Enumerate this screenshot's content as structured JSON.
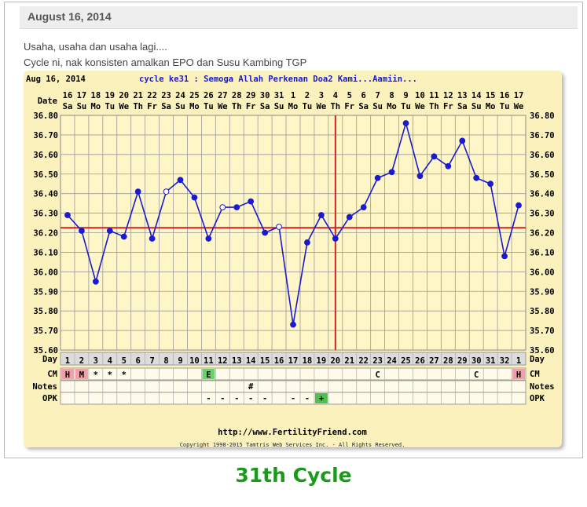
{
  "post": {
    "date": "August 16, 2014",
    "line1": "Usaha, usaha dan usaha lagi....",
    "line2": "Cycle ni, nak konsisten amalkan EPO dan Susu Kambing TGP"
  },
  "chart_header": {
    "start_date": "Aug 16, 2014",
    "title": "cycle ke31 : Semoga Allah Perkenan Doa2 Kami...Aamiin..."
  },
  "row_labels": {
    "date": "Date",
    "day": "Day",
    "cm": "CM",
    "notes": "Notes",
    "opk": "OPK"
  },
  "footer": {
    "url": "http://www.FertilityFriend.com",
    "copyright": "Copyright 1998-2015 Tamtris Web Services Inc. - All Rights Reserved."
  },
  "caption": "31th Cycle",
  "colors": {
    "line": "#1a1ad0",
    "coverline": "#d42020",
    "plot_bg": "#fff6c8",
    "caption": "#1a9a1a"
  },
  "chart_data": {
    "type": "line",
    "ylim": [
      35.6,
      36.8
    ],
    "y_ticks": [
      "36.80",
      "36.70",
      "36.60",
      "36.50",
      "36.40",
      "36.30",
      "36.20",
      "36.10",
      "36.00",
      "35.90",
      "35.80",
      "35.70",
      "35.60"
    ],
    "dates": [
      "16",
      "17",
      "18",
      "19",
      "20",
      "21",
      "22",
      "23",
      "24",
      "25",
      "26",
      "27",
      "28",
      "29",
      "30",
      "31",
      "1",
      "2",
      "3",
      "4",
      "5",
      "6",
      "7",
      "8",
      "9",
      "10",
      "11",
      "12",
      "13",
      "14",
      "15",
      "16",
      "17"
    ],
    "weekdays": [
      "Sa",
      "Su",
      "Mo",
      "Tu",
      "We",
      "Th",
      "Fr",
      "Sa",
      "Su",
      "Mo",
      "Tu",
      "We",
      "Th",
      "Fr",
      "Sa",
      "Su",
      "Mo",
      "Tu",
      "We",
      "Th",
      "Fr",
      "Sa",
      "Su",
      "Mo",
      "Tu",
      "We",
      "Th",
      "Fr",
      "Sa",
      "Su",
      "Mo",
      "Tu",
      "We"
    ],
    "cycle_days": [
      "1",
      "2",
      "3",
      "4",
      "5",
      "6",
      "7",
      "8",
      "9",
      "10",
      "11",
      "12",
      "13",
      "14",
      "15",
      "16",
      "17",
      "18",
      "19",
      "20",
      "21",
      "22",
      "23",
      "24",
      "25",
      "26",
      "27",
      "28",
      "29",
      "30",
      "31",
      "32",
      "1"
    ],
    "temps": [
      36.29,
      36.21,
      35.95,
      36.21,
      36.18,
      36.41,
      36.17,
      36.41,
      36.47,
      36.38,
      36.17,
      36.33,
      36.33,
      36.36,
      36.2,
      36.23,
      35.73,
      36.15,
      36.29,
      36.17,
      36.28,
      36.33,
      36.48,
      36.51,
      36.76,
      36.49,
      36.59,
      36.54,
      36.67,
      36.48,
      36.45,
      36.08,
      36.34
    ],
    "open_points": [
      7,
      11,
      15
    ],
    "coverline": 36.225,
    "ovulation_day": "20",
    "cm": [
      "H",
      "M",
      "*",
      "*",
      "*",
      "",
      "",
      "",
      "",
      "",
      "E",
      "",
      "",
      "",
      "",
      "",
      "",
      "",
      "",
      "",
      "",
      "",
      "C",
      "",
      "",
      "",
      "",
      "",
      "",
      "C",
      "",
      "",
      "H"
    ],
    "notes": [
      "",
      "",
      "",
      "",
      "",
      "",
      "",
      "",
      "",
      "",
      "",
      "",
      "",
      "#",
      "",
      "",
      "",
      "",
      "",
      "",
      "",
      "",
      "",
      "",
      "",
      "",
      "",
      "",
      "",
      "",
      "",
      "",
      ""
    ],
    "opk": [
      "",
      "",
      "",
      "",
      "",
      "",
      "",
      "",
      "",
      "",
      "-",
      "-",
      "-",
      "-",
      "-",
      "",
      "-",
      "-",
      "+",
      "",
      "",
      "",
      "",
      "",
      "",
      "",
      "",
      "",
      "",
      "",
      "",
      "",
      ""
    ]
  }
}
